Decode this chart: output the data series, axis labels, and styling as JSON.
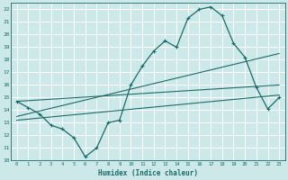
{
  "xlabel": "Humidex (Indice chaleur)",
  "bg_color": "#cce8e8",
  "grid_color": "#ffffff",
  "line_color": "#1a6b6b",
  "xlim": [
    -0.5,
    23.5
  ],
  "ylim": [
    10,
    22.5
  ],
  "x_ticks": [
    0,
    1,
    2,
    3,
    4,
    5,
    6,
    7,
    8,
    9,
    10,
    11,
    12,
    13,
    14,
    15,
    16,
    17,
    18,
    19,
    20,
    21,
    22,
    23
  ],
  "y_ticks": [
    10,
    11,
    12,
    13,
    14,
    15,
    16,
    17,
    18,
    19,
    20,
    21,
    22
  ],
  "main_curve_x": [
    0,
    1,
    2,
    3,
    4,
    5,
    6,
    7,
    8,
    9,
    10,
    11,
    12,
    13,
    14,
    15,
    16,
    17,
    18,
    19,
    20,
    21,
    22,
    23
  ],
  "main_curve_y": [
    14.7,
    14.2,
    13.7,
    12.8,
    12.5,
    11.8,
    10.3,
    11.0,
    13.0,
    13.2,
    16.0,
    17.5,
    18.7,
    19.5,
    19.0,
    21.3,
    22.0,
    22.2,
    21.5,
    19.3,
    18.2,
    15.8,
    14.1,
    15.0
  ],
  "line1_x": [
    0,
    23
  ],
  "line1_y": [
    14.7,
    16.0
  ],
  "line2_x": [
    0,
    23
  ],
  "line2_y": [
    13.5,
    18.5
  ],
  "line3_x": [
    0,
    23
  ],
  "line3_y": [
    13.2,
    15.2
  ],
  "figwidth": 3.2,
  "figheight": 2.0,
  "dpi": 100
}
